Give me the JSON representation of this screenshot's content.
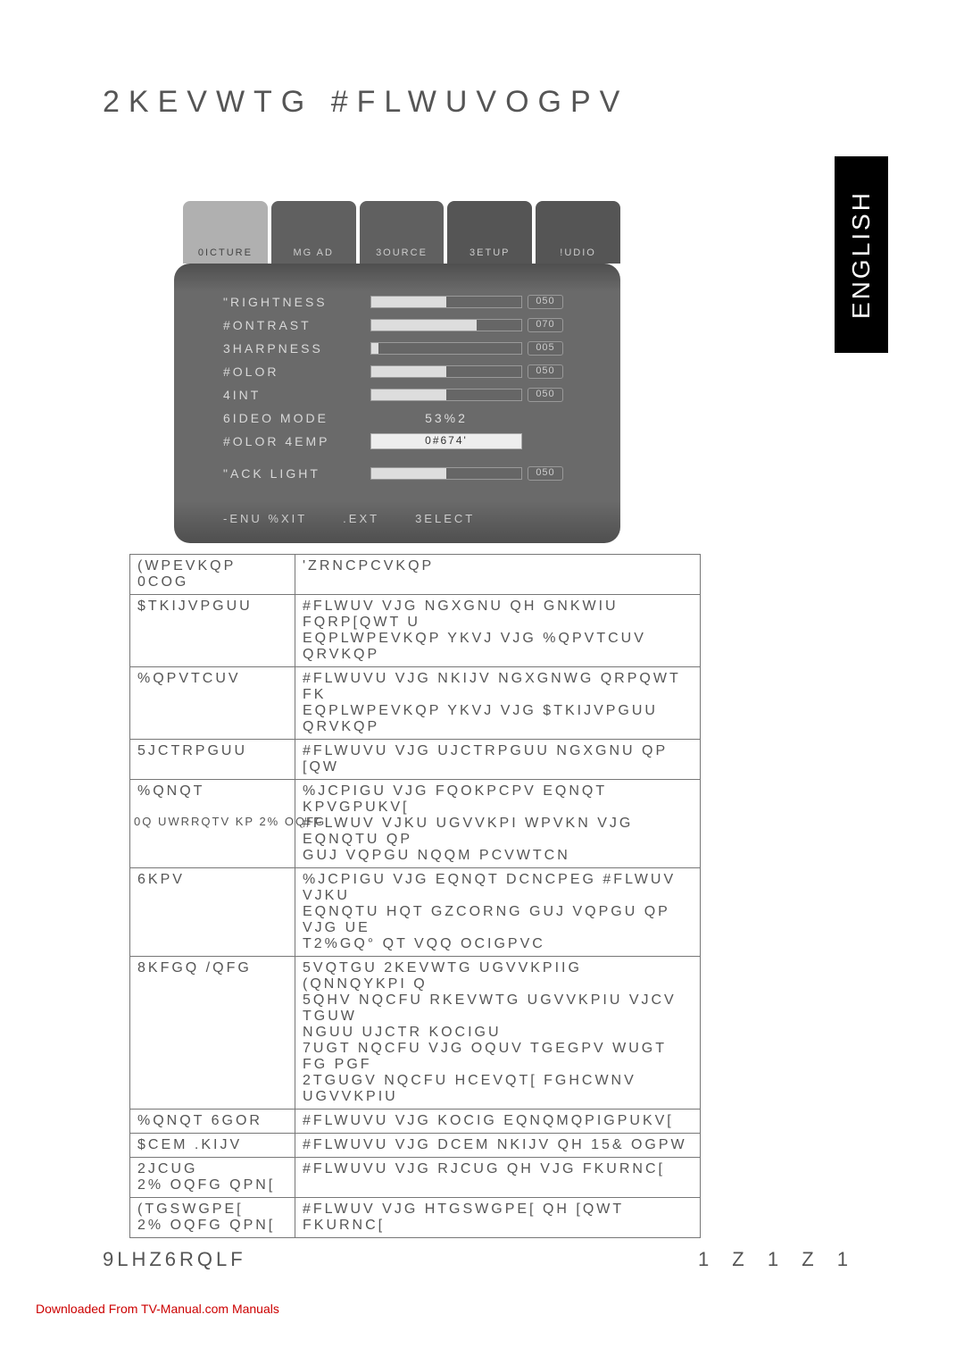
{
  "page_title": "2KEVWTG #FLWUVOGPV",
  "english_label": "ENGLISH",
  "osd": {
    "tabs": [
      "0ICTURE",
      "MG AD",
      "3OURCE",
      "3ETUP",
      "!UDIO"
    ],
    "rows": [
      {
        "label": "\"RIGHTNESS",
        "type": "slider",
        "value": "050",
        "fill": 50
      },
      {
        "label": "#ONTRAST",
        "type": "slider",
        "value": "070",
        "fill": 70
      },
      {
        "label": "3HARPNESS",
        "type": "slider",
        "value": "005",
        "fill": 5
      },
      {
        "label": "#OLOR",
        "type": "slider",
        "value": "050",
        "fill": 50
      },
      {
        "label": "4INT",
        "type": "slider",
        "value": "050",
        "fill": 50
      },
      {
        "label": "6IDEO MODE",
        "type": "text",
        "value": "53%2"
      },
      {
        "label": "#OLOR 4EMP",
        "type": "boxed",
        "value": "0#674'"
      },
      {
        "label": "\"ACK LIGHT",
        "type": "slider",
        "value": "050",
        "fill": 50
      }
    ],
    "footer": [
      "-ENU %XIT",
      ".EXT",
      "3ELECT"
    ]
  },
  "table": {
    "header": [
      "(WPEVKQP 0COG",
      "'ZRNCPCVKQP"
    ],
    "rows": [
      [
        "$TKIJVPGUU",
        "#FLWUV VJG NGXGNU QH GNKWIU FQRP[QWT U\nEQPLWPEVKQP YKVJ VJG %QPVTCUV QRVKQP"
      ],
      [
        "%QPVTCUV",
        "#FLWUVU VJG NKIJV NGXGNWG QRPQWT FK\nEQPLWPEVKQP YKVJ VJG $TKIJVPGUU QRVKQP"
      ],
      [
        "5JCTRPGUU",
        "#FLWUVU VJG UJCTRPGUU NGXGNU QP [QW"
      ],
      [
        "%QNQT",
        "%JCPIGU VJG FQOKPCPV EQNQT KPVGPUKV[\n#FLWUV VJKU UGVVKPI WPVKN VJG EQNQTU QP\nGUJ VQPGU NQQM PCVWTCN"
      ],
      [
        "6KPV",
        "%JCPIGU VJG EQNQT DCNCPEG #FLWUV VJKU\nEQNQTU HQT GZCORNG  GUJ VQPGU QP VJG UE\nT2%GQ° QT VQQ OCIGPVC"
      ],
      [
        "8KFGQ /QFG",
        "5VQTGU 2KEVWTG UGVVKPIIG (QNNQYKPI Q\n5QHV  NQCFU RKEVWTG UGVVKPIU VJCV TGUW\nNGUU UJCTR KOCIGU\n7UGT  NQCFU VJG OQUV TGEGPV WUGT FG PGF\n2TGUGV  NQCFU HCEVQT[ FGHCWNV UGVVKPIU"
      ],
      [
        "%QNQT 6GOR",
        "#FLWUVU VJG KOCIG EQNQMQPIGPUKV["
      ],
      [
        "$CEM .KIJV",
        "#FLWUVU VJG DCEM NKIJV QH 15& OGPW"
      ],
      [
        "2JCUG\n2% OQFG QPN[",
        "#FLWUVU VJG RJCUG QH VJG FKURNC["
      ],
      [
        "(TGSWGPE[\n2% OQFG QPN[",
        "#FLWUV VJG HTGSWGPE[ QH [QWT FKURNC["
      ]
    ]
  },
  "note_overlay": "0Q UWRRQTV KP 2% OQFG",
  "footer_left": "9LHZ6RQLF",
  "footer_right": "1   Z 1   Z 1",
  "footer_dl": "Downloaded From TV-Manual.com Manuals",
  "colors": {
    "text": "#555555",
    "osd_bg": "#6a6a6a",
    "osd_text": "#d8d8d8",
    "tab_active": "#b0b0b0",
    "tab_dim": "#606060"
  }
}
